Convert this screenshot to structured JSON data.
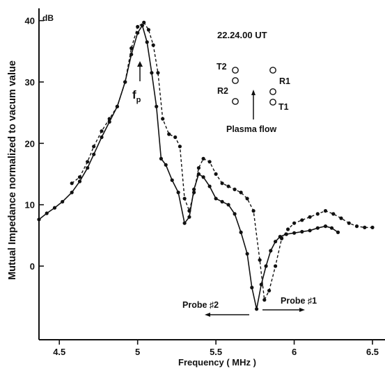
{
  "chart_data": {
    "type": "line",
    "title": "",
    "xlabel": "Frequency  ( MHz )",
    "ylabel": "Mutual  Impedance  normalized  to vacum value",
    "y_unit": "dB",
    "xlim": [
      4.37,
      6.58
    ],
    "ylim": [
      -12,
      42
    ],
    "x_ticks": [
      4.5,
      5,
      5.5,
      6,
      6.5
    ],
    "x_tick_labels": [
      "4.5",
      "5",
      "5.5",
      "6",
      "6.5"
    ],
    "y_ticks": [
      0,
      10,
      20,
      30,
      40
    ],
    "y_tick_labels": [
      "0",
      "10",
      "20",
      "30",
      "40"
    ],
    "grid": false,
    "series": [
      {
        "name": "Probe ♯2",
        "style": "solid",
        "x": [
          4.37,
          4.42,
          4.47,
          4.52,
          4.58,
          4.63,
          4.68,
          4.72,
          4.77,
          4.82,
          4.87,
          4.92,
          4.96,
          5.0,
          5.03,
          5.06,
          5.09,
          5.12,
          5.15,
          5.18,
          5.22,
          5.26,
          5.3,
          5.33,
          5.36,
          5.39,
          5.42,
          5.46,
          5.5,
          5.54,
          5.58,
          5.62,
          5.66,
          5.7,
          5.73,
          5.76,
          5.79,
          5.82,
          5.85,
          5.88,
          5.91,
          5.95,
          6.0,
          6.05,
          6.1,
          6.15,
          6.2,
          6.24,
          6.28
        ],
        "y": [
          7.6,
          8.6,
          9.5,
          10.5,
          12.0,
          13.8,
          16.0,
          18.2,
          21.0,
          23.5,
          26.0,
          30.0,
          34.5,
          38.0,
          39.2,
          36.5,
          31.5,
          26.0,
          17.5,
          16.5,
          14.0,
          12.0,
          7.0,
          8.0,
          12.5,
          15.0,
          14.5,
          13.0,
          11.0,
          10.5,
          10.0,
          8.5,
          5.5,
          2.0,
          -3.5,
          -7.0,
          -3.0,
          0.0,
          2.5,
          4.0,
          4.8,
          5.2,
          5.4,
          5.6,
          5.8,
          6.2,
          6.5,
          6.2,
          5.5
        ]
      },
      {
        "name": "Probe ♯1",
        "style": "dashed",
        "x": [
          4.58,
          4.63,
          4.68,
          4.72,
          4.77,
          4.82,
          4.87,
          4.92,
          4.96,
          5.0,
          5.04,
          5.07,
          5.1,
          5.13,
          5.16,
          5.2,
          5.24,
          5.27,
          5.3,
          5.33,
          5.36,
          5.39,
          5.42,
          5.46,
          5.5,
          5.54,
          5.58,
          5.62,
          5.66,
          5.7,
          5.74,
          5.78,
          5.81,
          5.84,
          5.88,
          5.92,
          5.96,
          6.0,
          6.05,
          6.1,
          6.15,
          6.2,
          6.25,
          6.3,
          6.35,
          6.4,
          6.45,
          6.5
        ],
        "y": [
          13.5,
          14.5,
          17.0,
          19.5,
          22.0,
          24.0,
          26.0,
          30.0,
          35.5,
          39.0,
          39.7,
          38.5,
          36.0,
          31.5,
          24.0,
          21.5,
          21.0,
          19.5,
          11.0,
          9.0,
          12.0,
          16.0,
          17.5,
          17.0,
          15.0,
          13.5,
          13.0,
          12.5,
          12.0,
          11.0,
          9.0,
          1.0,
          -5.5,
          -4.0,
          0.0,
          4.5,
          6.0,
          7.0,
          7.5,
          8.0,
          8.5,
          9.0,
          8.5,
          7.8,
          7.0,
          6.5,
          6.3,
          6.3
        ]
      }
    ],
    "annotations": {
      "time": "22.24.00 UT",
      "fp_label": "f",
      "fp_subscript": "p",
      "plasma_flow": "Plasma flow",
      "probe2": "Probe ♯2",
      "probe1": "Probe ♯1",
      "probes": [
        "T2",
        "R2",
        "R1",
        "T1"
      ]
    }
  }
}
